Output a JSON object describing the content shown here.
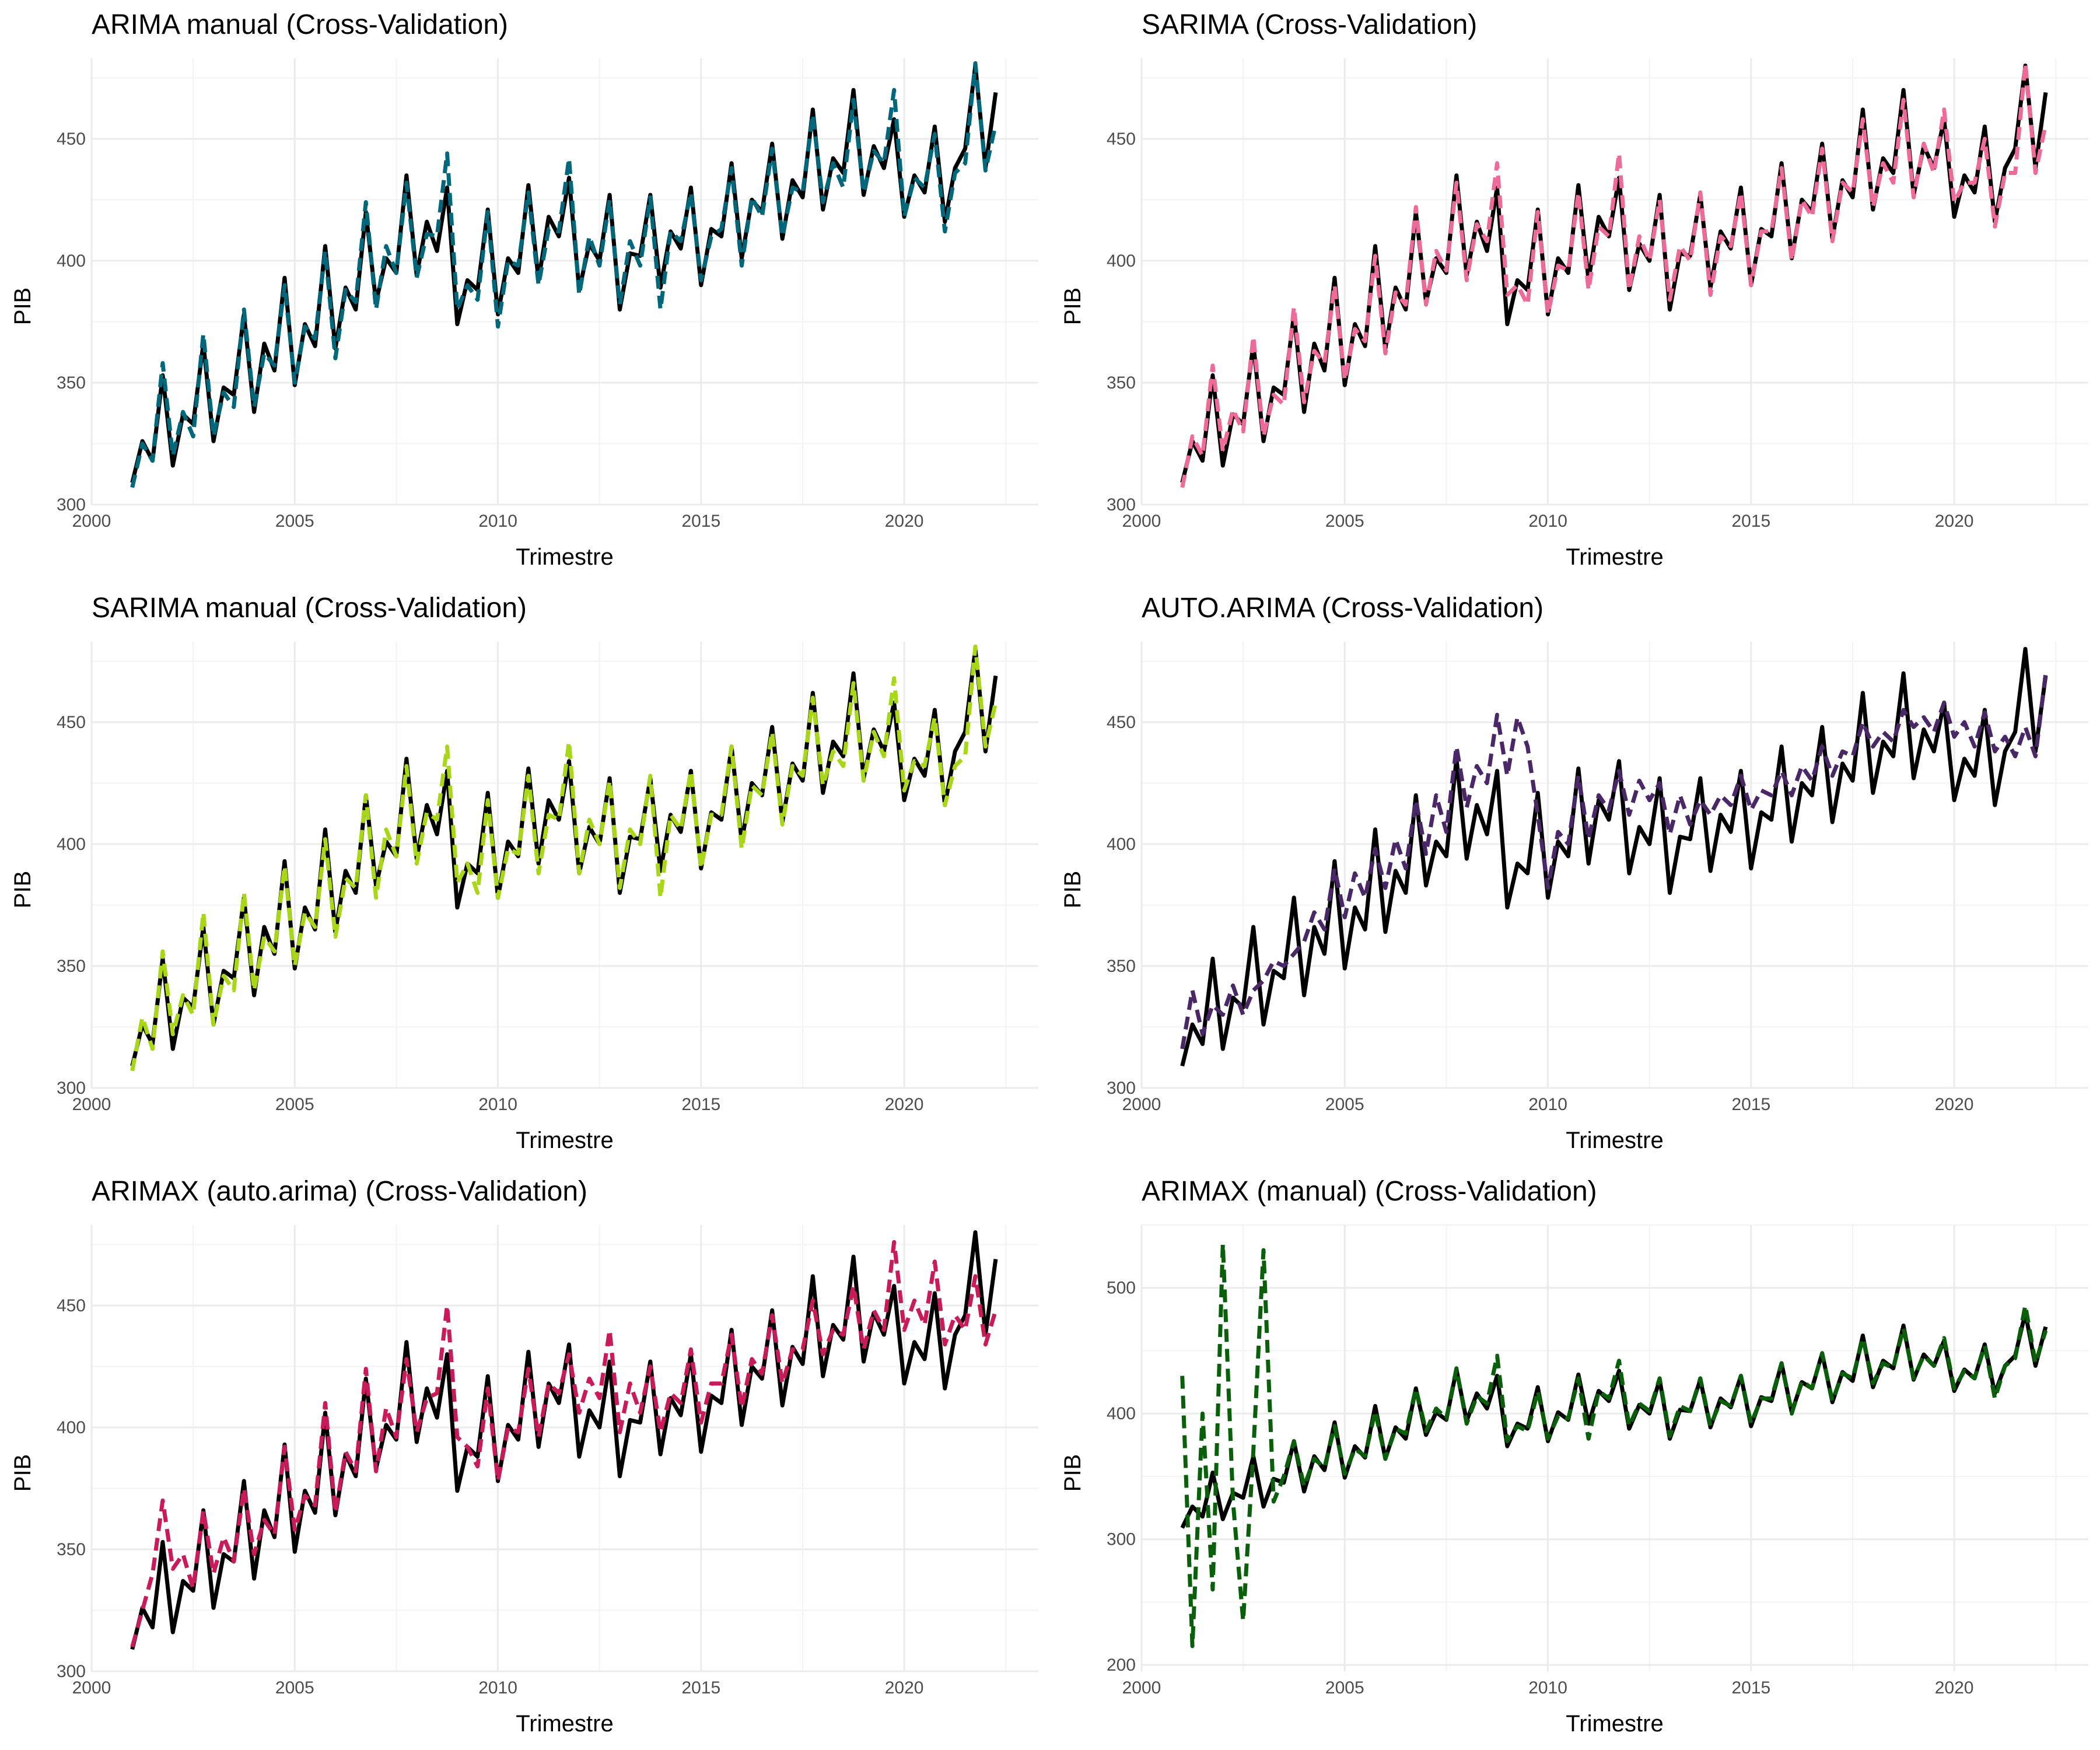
{
  "chart_data": [
    {
      "type": "line",
      "title": "ARIMA manual (Cross-Validation)",
      "xlabel": "Trimestre",
      "ylabel": "PIB",
      "xlim": [
        2000,
        2023.3
      ],
      "ylim": [
        300,
        483
      ],
      "xticks": [
        2000,
        2005,
        2010,
        2015,
        2020
      ],
      "yticks": [
        300,
        350,
        400,
        450
      ],
      "grid": true,
      "legend": "none",
      "actual_color": "#000000",
      "forecast_color": "#00687a",
      "forecast_style": "dashed",
      "x_start": 2001.0,
      "x_step": 0.25,
      "actual": [
        309,
        326,
        318,
        353,
        316,
        337,
        333,
        366,
        326,
        348,
        345,
        378,
        338,
        366,
        355,
        393,
        349,
        374,
        365,
        406,
        364,
        389,
        380,
        420,
        383,
        401,
        395,
        435,
        394,
        416,
        404,
        430,
        374,
        392,
        388,
        421,
        378,
        401,
        395,
        431,
        392,
        418,
        410,
        434,
        388,
        407,
        400,
        427,
        380,
        403,
        402,
        427,
        389,
        412,
        405,
        430,
        390,
        413,
        410,
        440,
        401,
        425,
        420,
        448,
        409,
        433,
        426,
        462,
        421,
        442,
        436,
        470,
        427,
        447,
        438,
        458,
        418,
        435,
        428,
        455,
        416,
        438,
        446,
        480,
        438,
        469
      ],
      "forecast": [
        307,
        325,
        318,
        358,
        320,
        338,
        328,
        370,
        328,
        346,
        340,
        380,
        340,
        362,
        357,
        390,
        350,
        373,
        368,
        404,
        360,
        388,
        383,
        424,
        380,
        406,
        395,
        432,
        393,
        411,
        410,
        444,
        380,
        390,
        384,
        420,
        373,
        400,
        398,
        428,
        390,
        413,
        412,
        442,
        386,
        410,
        398,
        425,
        382,
        408,
        398,
        426,
        380,
        412,
        408,
        428,
        392,
        410,
        413,
        438,
        398,
        426,
        418,
        446,
        410,
        430,
        428,
        460,
        424,
        440,
        430,
        466,
        428,
        445,
        440,
        470,
        418,
        434,
        430,
        452,
        412,
        436,
        440,
        481,
        437,
        456
      ]
    },
    {
      "type": "line",
      "title": "SARIMA (Cross-Validation)",
      "xlabel": "Trimestre",
      "ylabel": "PIB",
      "xlim": [
        2000,
        2023.3
      ],
      "ylim": [
        300,
        483
      ],
      "xticks": [
        2000,
        2005,
        2010,
        2015,
        2020
      ],
      "yticks": [
        300,
        350,
        400,
        450
      ],
      "grid": true,
      "legend": "none",
      "actual_color": "#000000",
      "forecast_color": "#ee6a99",
      "forecast_style": "dashed",
      "x_start": 2001.0,
      "x_step": 0.25,
      "actual": [
        309,
        326,
        318,
        353,
        316,
        337,
        333,
        366,
        326,
        348,
        345,
        378,
        338,
        366,
        355,
        393,
        349,
        374,
        365,
        406,
        364,
        389,
        380,
        420,
        383,
        401,
        395,
        435,
        394,
        416,
        404,
        430,
        374,
        392,
        388,
        421,
        378,
        401,
        395,
        431,
        392,
        418,
        410,
        434,
        388,
        407,
        400,
        427,
        380,
        403,
        402,
        427,
        389,
        412,
        405,
        430,
        390,
        413,
        410,
        440,
        401,
        425,
        420,
        448,
        409,
        433,
        426,
        462,
        421,
        442,
        436,
        470,
        427,
        447,
        438,
        458,
        418,
        435,
        428,
        455,
        416,
        438,
        446,
        480,
        438,
        469
      ],
      "forecast": [
        307,
        328,
        320,
        357,
        322,
        339,
        330,
        369,
        328,
        345,
        341,
        381,
        342,
        363,
        358,
        390,
        351,
        372,
        367,
        402,
        362,
        387,
        382,
        422,
        382,
        404,
        396,
        432,
        392,
        415,
        408,
        440,
        386,
        390,
        382,
        420,
        378,
        398,
        396,
        428,
        388,
        414,
        410,
        444,
        388,
        410,
        400,
        425,
        384,
        406,
        400,
        428,
        386,
        410,
        406,
        428,
        390,
        412,
        412,
        438,
        400,
        425,
        418,
        446,
        408,
        432,
        428,
        458,
        422,
        440,
        432,
        466,
        426,
        448,
        436,
        462,
        424,
        432,
        432,
        450,
        414,
        436,
        436,
        481,
        436,
        456
      ]
    },
    {
      "type": "line",
      "title": "SARIMA manual (Cross-Validation)",
      "xlabel": "Trimestre",
      "ylabel": "PIB",
      "xlim": [
        2000,
        2023.3
      ],
      "ylim": [
        300,
        483
      ],
      "xticks": [
        2000,
        2005,
        2010,
        2015,
        2020
      ],
      "yticks": [
        300,
        350,
        400,
        450
      ],
      "grid": true,
      "legend": "none",
      "actual_color": "#000000",
      "forecast_color": "#a8d718",
      "forecast_style": "dashed",
      "x_start": 2001.0,
      "x_step": 0.25,
      "actual": [
        309,
        326,
        318,
        353,
        316,
        337,
        333,
        366,
        326,
        348,
        345,
        378,
        338,
        366,
        355,
        393,
        349,
        374,
        365,
        406,
        364,
        389,
        380,
        420,
        383,
        401,
        395,
        435,
        394,
        416,
        404,
        430,
        374,
        392,
        388,
        421,
        378,
        401,
        395,
        431,
        392,
        418,
        410,
        434,
        388,
        407,
        400,
        427,
        380,
        403,
        402,
        427,
        389,
        412,
        405,
        430,
        390,
        413,
        410,
        440,
        401,
        425,
        420,
        448,
        409,
        433,
        426,
        462,
        421,
        442,
        436,
        470,
        427,
        447,
        438,
        458,
        418,
        435,
        428,
        455,
        416,
        438,
        446,
        480,
        438,
        469
      ],
      "forecast": [
        307,
        329,
        316,
        356,
        322,
        338,
        330,
        372,
        326,
        346,
        340,
        380,
        340,
        362,
        356,
        391,
        350,
        372,
        366,
        402,
        362,
        386,
        382,
        420,
        378,
        406,
        395,
        432,
        392,
        413,
        410,
        440,
        384,
        392,
        380,
        418,
        378,
        398,
        396,
        428,
        388,
        412,
        410,
        442,
        388,
        410,
        400,
        426,
        382,
        406,
        400,
        428,
        378,
        412,
        406,
        430,
        390,
        412,
        412,
        440,
        398,
        424,
        420,
        446,
        408,
        432,
        428,
        460,
        424,
        438,
        432,
        466,
        426,
        446,
        436,
        468,
        422,
        434,
        432,
        452,
        416,
        432,
        436,
        481,
        440,
        458
      ]
    },
    {
      "type": "line",
      "title": "AUTO.ARIMA (Cross-Validation)",
      "xlabel": "Trimestre",
      "ylabel": "PIB",
      "xlim": [
        2000,
        2023.3
      ],
      "ylim": [
        300,
        483
      ],
      "xticks": [
        2000,
        2005,
        2010,
        2015,
        2020
      ],
      "yticks": [
        300,
        350,
        400,
        450
      ],
      "grid": true,
      "legend": "none",
      "actual_color": "#000000",
      "forecast_color": "#4a2766",
      "forecast_style": "dashed",
      "x_start": 2001.0,
      "x_step": 0.25,
      "actual": [
        309,
        326,
        318,
        353,
        316,
        337,
        333,
        366,
        326,
        348,
        345,
        378,
        338,
        366,
        355,
        393,
        349,
        374,
        365,
        406,
        364,
        389,
        380,
        420,
        383,
        401,
        395,
        435,
        394,
        416,
        404,
        430,
        374,
        392,
        388,
        421,
        378,
        401,
        395,
        431,
        392,
        418,
        410,
        434,
        388,
        407,
        400,
        427,
        380,
        403,
        402,
        427,
        389,
        412,
        405,
        430,
        390,
        413,
        410,
        440,
        401,
        425,
        420,
        448,
        409,
        433,
        426,
        462,
        421,
        442,
        436,
        470,
        427,
        447,
        438,
        458,
        418,
        435,
        428,
        455,
        416,
        438,
        446,
        480,
        438,
        469
      ],
      "forecast": [
        316,
        340,
        322,
        334,
        330,
        342,
        330,
        340,
        344,
        352,
        350,
        355,
        360,
        372,
        365,
        390,
        370,
        388,
        378,
        398,
        382,
        402,
        390,
        418,
        396,
        420,
        405,
        440,
        415,
        432,
        425,
        453,
        428,
        452,
        440,
        412,
        382,
        405,
        400,
        428,
        402,
        420,
        414,
        430,
        412,
        426,
        418,
        425,
        404,
        420,
        408,
        418,
        412,
        420,
        416,
        428,
        414,
        422,
        420,
        430,
        420,
        432,
        426,
        440,
        428,
        438,
        436,
        450,
        440,
        446,
        442,
        455,
        448,
        452,
        446,
        458,
        444,
        450,
        440,
        454,
        438,
        444,
        436,
        448,
        436,
        470
      ]
    },
    {
      "type": "line",
      "title": "ARIMAX (auto.arima) (Cross-Validation)",
      "xlabel": "Trimestre",
      "ylabel": "PIB",
      "xlim": [
        2000,
        2023.3
      ],
      "ylim": [
        300,
        483
      ],
      "xticks": [
        2000,
        2005,
        2010,
        2015,
        2020
      ],
      "yticks": [
        300,
        350,
        400,
        450
      ],
      "grid": true,
      "legend": "none",
      "actual_color": "#000000",
      "forecast_color": "#c91b5a",
      "forecast_style": "dashed",
      "x_start": 2001.0,
      "x_step": 0.25,
      "actual": [
        309,
        326,
        318,
        353,
        316,
        337,
        333,
        366,
        326,
        348,
        345,
        378,
        338,
        366,
        355,
        393,
        349,
        374,
        365,
        406,
        364,
        389,
        380,
        420,
        383,
        401,
        395,
        435,
        394,
        416,
        404,
        430,
        374,
        392,
        388,
        421,
        378,
        401,
        395,
        431,
        392,
        418,
        410,
        434,
        388,
        407,
        400,
        427,
        380,
        403,
        402,
        427,
        389,
        412,
        405,
        430,
        390,
        413,
        410,
        440,
        401,
        425,
        420,
        448,
        409,
        433,
        426,
        462,
        421,
        442,
        436,
        470,
        427,
        447,
        438,
        458,
        418,
        435,
        428,
        455,
        416,
        438,
        446,
        480,
        438,
        469
      ],
      "forecast": [
        310,
        325,
        340,
        370,
        342,
        348,
        334,
        366,
        340,
        355,
        345,
        375,
        348,
        362,
        356,
        392,
        358,
        372,
        368,
        410,
        365,
        390,
        382,
        424,
        382,
        408,
        396,
        428,
        398,
        412,
        414,
        450,
        396,
        392,
        384,
        416,
        378,
        400,
        398,
        424,
        396,
        418,
        414,
        430,
        406,
        420,
        412,
        440,
        398,
        418,
        406,
        425,
        398,
        414,
        410,
        432,
        402,
        418,
        418,
        438,
        408,
        428,
        422,
        446,
        418,
        432,
        432,
        452,
        430,
        440,
        438,
        458,
        432,
        448,
        440,
        476,
        440,
        452,
        442,
        468,
        434,
        446,
        440,
        462,
        434,
        448
      ]
    },
    {
      "type": "line",
      "title": "ARIMAX (manual) (Cross-Validation)",
      "xlabel": "Trimestre",
      "ylabel": "PIB",
      "xlim": [
        2000,
        2023.3
      ],
      "ylim": [
        195,
        550
      ],
      "xticks": [
        2000,
        2005,
        2010,
        2015,
        2020
      ],
      "yticks": [
        200,
        300,
        400,
        500
      ],
      "grid": true,
      "legend": "none",
      "actual_color": "#000000",
      "forecast_color": "#0a5f0a",
      "forecast_style": "dashed",
      "x_start": 2001.0,
      "x_step": 0.25,
      "actual": [
        309,
        326,
        318,
        353,
        316,
        337,
        333,
        366,
        326,
        348,
        345,
        378,
        338,
        366,
        355,
        393,
        349,
        374,
        365,
        406,
        364,
        389,
        380,
        420,
        383,
        401,
        395,
        435,
        394,
        416,
        404,
        430,
        374,
        392,
        388,
        421,
        378,
        401,
        395,
        431,
        392,
        418,
        410,
        434,
        388,
        407,
        400,
        427,
        380,
        403,
        402,
        427,
        389,
        412,
        405,
        430,
        390,
        413,
        410,
        440,
        401,
        425,
        420,
        448,
        409,
        433,
        426,
        462,
        421,
        442,
        436,
        470,
        427,
        447,
        438,
        458,
        418,
        435,
        428,
        455,
        416,
        438,
        446,
        480,
        438,
        469
      ],
      "forecast": [
        430,
        215,
        400,
        260,
        535,
        330,
        235,
        370,
        530,
        330,
        350,
        378,
        342,
        364,
        357,
        390,
        352,
        372,
        366,
        402,
        364,
        388,
        384,
        420,
        386,
        404,
        396,
        436,
        392,
        414,
        408,
        446,
        378,
        390,
        386,
        418,
        380,
        398,
        396,
        428,
        380,
        418,
        412,
        442,
        390,
        408,
        402,
        428,
        382,
        406,
        402,
        428,
        390,
        410,
        406,
        430,
        392,
        412,
        412,
        440,
        400,
        426,
        420,
        448,
        410,
        432,
        428,
        460,
        424,
        440,
        436,
        468,
        428,
        446,
        438,
        460,
        420,
        434,
        428,
        454,
        412,
        438,
        444,
        486,
        440,
        466
      ]
    }
  ]
}
